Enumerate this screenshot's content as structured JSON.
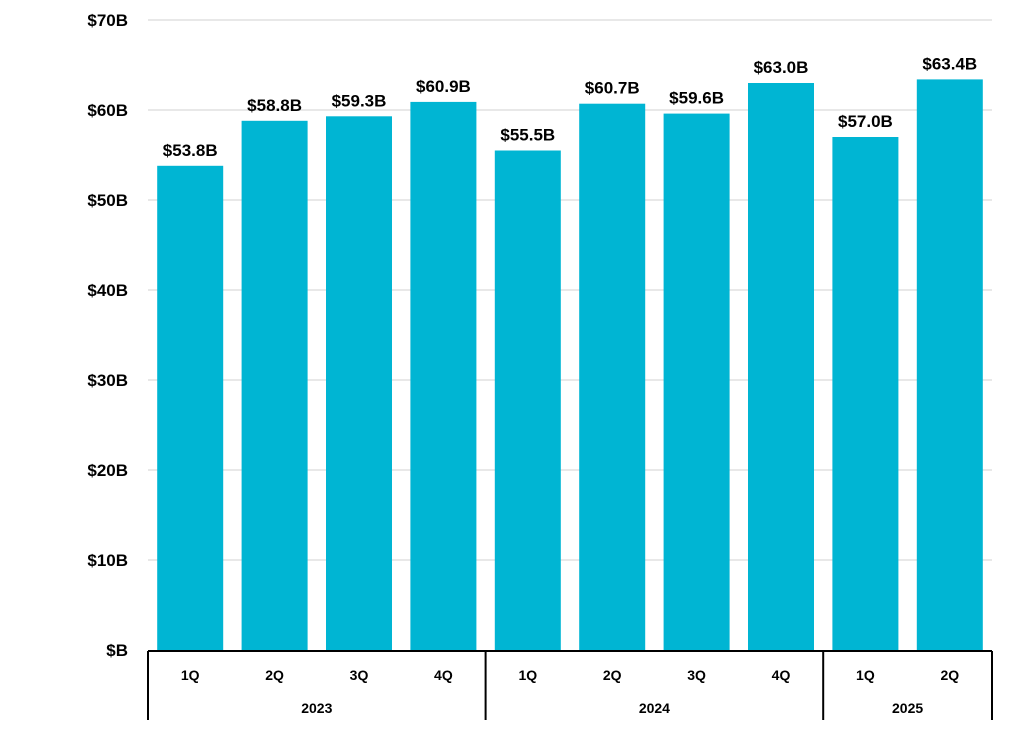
{
  "chart_data": {
    "type": "bar",
    "title": "",
    "xlabel": "",
    "ylabel": "",
    "color": "#00B5D3",
    "categories": [
      "1Q",
      "2Q",
      "3Q",
      "4Q",
      "1Q",
      "2Q",
      "3Q",
      "4Q",
      "1Q",
      "2Q"
    ],
    "groups": [
      {
        "label": "2023",
        "count": 4
      },
      {
        "label": "2024",
        "count": 4
      },
      {
        "label": "2025",
        "count": 2
      }
    ],
    "values": [
      53.8,
      58.8,
      59.3,
      60.9,
      55.5,
      60.7,
      59.6,
      63.0,
      57.0,
      63.4
    ],
    "data_labels": [
      "$53.8B",
      "$58.8B",
      "$59.3B",
      "$60.9B",
      "$55.5B",
      "$60.7B",
      "$59.6B",
      "$63.0B",
      "$57.0B",
      "$63.4B"
    ],
    "ylim": [
      0,
      70
    ],
    "yticks": [
      0,
      10,
      20,
      30,
      40,
      50,
      60,
      70
    ],
    "ytick_labels": [
      "$B",
      "$10B",
      "$20B",
      "$30B",
      "$40B",
      "$50B",
      "$60B",
      "$70B"
    ],
    "grid": true,
    "legend": "none"
  }
}
